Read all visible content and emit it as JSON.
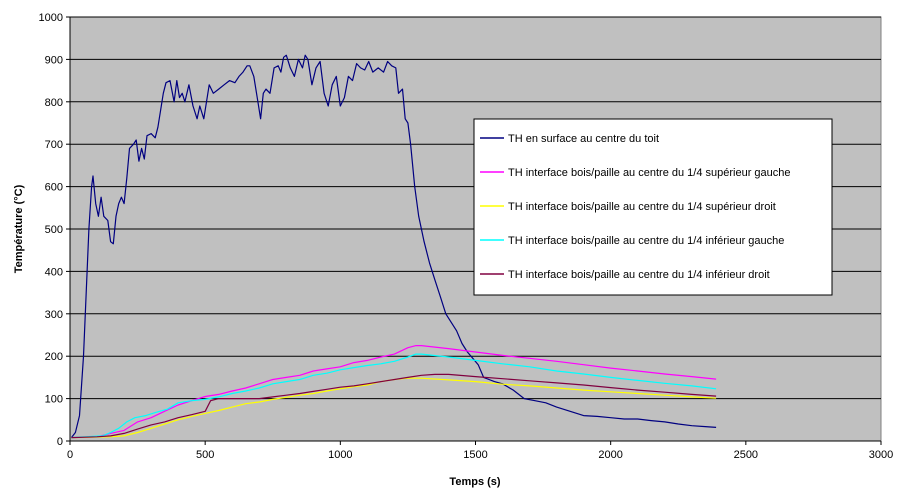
{
  "chart_data": {
    "type": "line",
    "title": "",
    "xlabel": "Temps (s)",
    "ylabel": "Température (°C)",
    "xlim": [
      0,
      3000
    ],
    "ylim": [
      0,
      1000
    ],
    "x_ticks": [
      0,
      500,
      1000,
      1500,
      2000,
      2500,
      3000
    ],
    "y_ticks": [
      0,
      100,
      200,
      300,
      400,
      500,
      600,
      700,
      800,
      900,
      1000
    ],
    "grid": "horizontal",
    "legend_position": "right",
    "plot_background": "#c0c0c0",
    "series": [
      {
        "name": "TH en surface au centre du toit",
        "color": "#000080",
        "points": [
          [
            5,
            8
          ],
          [
            20,
            20
          ],
          [
            35,
            60
          ],
          [
            50,
            200
          ],
          [
            60,
            350
          ],
          [
            70,
            500
          ],
          [
            80,
            600
          ],
          [
            85,
            625
          ],
          [
            95,
            560
          ],
          [
            105,
            530
          ],
          [
            115,
            575
          ],
          [
            125,
            530
          ],
          [
            140,
            520
          ],
          [
            150,
            470
          ],
          [
            160,
            465
          ],
          [
            170,
            530
          ],
          [
            180,
            560
          ],
          [
            190,
            575
          ],
          [
            200,
            560
          ],
          [
            210,
            620
          ],
          [
            220,
            690
          ],
          [
            235,
            700
          ],
          [
            245,
            710
          ],
          [
            255,
            660
          ],
          [
            265,
            690
          ],
          [
            275,
            665
          ],
          [
            285,
            720
          ],
          [
            300,
            725
          ],
          [
            315,
            715
          ],
          [
            325,
            740
          ],
          [
            335,
            780
          ],
          [
            345,
            820
          ],
          [
            355,
            845
          ],
          [
            370,
            850
          ],
          [
            385,
            800
          ],
          [
            395,
            850
          ],
          [
            405,
            810
          ],
          [
            415,
            820
          ],
          [
            425,
            800
          ],
          [
            440,
            840
          ],
          [
            455,
            790
          ],
          [
            470,
            760
          ],
          [
            480,
            790
          ],
          [
            495,
            760
          ],
          [
            505,
            800
          ],
          [
            515,
            840
          ],
          [
            530,
            820
          ],
          [
            550,
            830
          ],
          [
            570,
            840
          ],
          [
            590,
            850
          ],
          [
            610,
            845
          ],
          [
            625,
            860
          ],
          [
            640,
            870
          ],
          [
            655,
            885
          ],
          [
            665,
            885
          ],
          [
            680,
            860
          ],
          [
            695,
            800
          ],
          [
            705,
            760
          ],
          [
            715,
            820
          ],
          [
            725,
            830
          ],
          [
            740,
            820
          ],
          [
            755,
            880
          ],
          [
            770,
            885
          ],
          [
            780,
            870
          ],
          [
            790,
            905
          ],
          [
            800,
            910
          ],
          [
            815,
            880
          ],
          [
            830,
            860
          ],
          [
            845,
            900
          ],
          [
            860,
            880
          ],
          [
            870,
            910
          ],
          [
            880,
            900
          ],
          [
            895,
            840
          ],
          [
            910,
            880
          ],
          [
            925,
            895
          ],
          [
            940,
            820
          ],
          [
            955,
            790
          ],
          [
            970,
            840
          ],
          [
            985,
            860
          ],
          [
            1000,
            790
          ],
          [
            1015,
            810
          ],
          [
            1030,
            860
          ],
          [
            1045,
            850
          ],
          [
            1060,
            890
          ],
          [
            1075,
            880
          ],
          [
            1090,
            875
          ],
          [
            1105,
            895
          ],
          [
            1120,
            870
          ],
          [
            1140,
            880
          ],
          [
            1160,
            870
          ],
          [
            1175,
            895
          ],
          [
            1190,
            885
          ],
          [
            1205,
            880
          ],
          [
            1215,
            820
          ],
          [
            1230,
            830
          ],
          [
            1240,
            760
          ],
          [
            1250,
            750
          ],
          [
            1260,
            700
          ],
          [
            1275,
            600
          ],
          [
            1290,
            530
          ],
          [
            1310,
            470
          ],
          [
            1330,
            420
          ],
          [
            1350,
            380
          ],
          [
            1370,
            340
          ],
          [
            1390,
            300
          ],
          [
            1410,
            280
          ],
          [
            1430,
            260
          ],
          [
            1450,
            230
          ],
          [
            1470,
            210
          ],
          [
            1490,
            195
          ],
          [
            1510,
            180
          ],
          [
            1530,
            150
          ],
          [
            1550,
            145
          ],
          [
            1570,
            140
          ],
          [
            1600,
            135
          ],
          [
            1640,
            120
          ],
          [
            1680,
            100
          ],
          [
            1720,
            95
          ],
          [
            1760,
            90
          ],
          [
            1800,
            80
          ],
          [
            1850,
            70
          ],
          [
            1900,
            60
          ],
          [
            1950,
            58
          ],
          [
            2000,
            55
          ],
          [
            2050,
            52
          ],
          [
            2100,
            52
          ],
          [
            2150,
            48
          ],
          [
            2200,
            45
          ],
          [
            2250,
            40
          ],
          [
            2300,
            36
          ],
          [
            2350,
            34
          ],
          [
            2390,
            32
          ]
        ]
      },
      {
        "name": "TH interface bois/paille au centre du 1/4 supérieur gauche",
        "color": "#ff00ff",
        "points": [
          [
            5,
            8
          ],
          [
            100,
            10
          ],
          [
            150,
            18
          ],
          [
            200,
            25
          ],
          [
            250,
            45
          ],
          [
            300,
            55
          ],
          [
            350,
            70
          ],
          [
            400,
            85
          ],
          [
            450,
            95
          ],
          [
            500,
            105
          ],
          [
            550,
            110
          ],
          [
            600,
            118
          ],
          [
            650,
            125
          ],
          [
            700,
            135
          ],
          [
            750,
            145
          ],
          [
            800,
            150
          ],
          [
            850,
            155
          ],
          [
            900,
            165
          ],
          [
            950,
            170
          ],
          [
            1000,
            175
          ],
          [
            1050,
            185
          ],
          [
            1100,
            190
          ],
          [
            1150,
            198
          ],
          [
            1200,
            205
          ],
          [
            1250,
            220
          ],
          [
            1280,
            225
          ],
          [
            1300,
            225
          ],
          [
            1400,
            218
          ],
          [
            1500,
            210
          ],
          [
            1600,
            202
          ],
          [
            1700,
            195
          ],
          [
            1800,
            188
          ],
          [
            1900,
            180
          ],
          [
            2000,
            172
          ],
          [
            2100,
            165
          ],
          [
            2200,
            158
          ],
          [
            2300,
            152
          ],
          [
            2390,
            146
          ]
        ]
      },
      {
        "name": "TH interface bois/paille au centre du 1/4 supérieur droit",
        "color": "#ffff00",
        "points": [
          [
            5,
            8
          ],
          [
            150,
            10
          ],
          [
            200,
            12
          ],
          [
            250,
            20
          ],
          [
            300,
            30
          ],
          [
            350,
            40
          ],
          [
            400,
            50
          ],
          [
            450,
            58
          ],
          [
            500,
            65
          ],
          [
            550,
            72
          ],
          [
            600,
            80
          ],
          [
            650,
            88
          ],
          [
            700,
            92
          ],
          [
            750,
            98
          ],
          [
            800,
            103
          ],
          [
            850,
            108
          ],
          [
            900,
            112
          ],
          [
            950,
            118
          ],
          [
            1000,
            123
          ],
          [
            1050,
            128
          ],
          [
            1100,
            132
          ],
          [
            1150,
            140
          ],
          [
            1200,
            145
          ],
          [
            1250,
            148
          ],
          [
            1300,
            148
          ],
          [
            1400,
            144
          ],
          [
            1500,
            140
          ],
          [
            1600,
            134
          ],
          [
            1700,
            130
          ],
          [
            1800,
            125
          ],
          [
            1900,
            120
          ],
          [
            2000,
            116
          ],
          [
            2100,
            112
          ],
          [
            2200,
            108
          ],
          [
            2300,
            104
          ],
          [
            2390,
            101
          ]
        ]
      },
      {
        "name": "TH interface bois/paille au centre du 1/4 inférieur gauche",
        "color": "#00ffff",
        "points": [
          [
            5,
            8
          ],
          [
            120,
            12
          ],
          [
            150,
            20
          ],
          [
            180,
            30
          ],
          [
            210,
            45
          ],
          [
            240,
            55
          ],
          [
            280,
            60
          ],
          [
            320,
            68
          ],
          [
            360,
            75
          ],
          [
            400,
            90
          ],
          [
            450,
            95
          ],
          [
            500,
            98
          ],
          [
            550,
            104
          ],
          [
            600,
            112
          ],
          [
            650,
            118
          ],
          [
            700,
            125
          ],
          [
            750,
            135
          ],
          [
            800,
            140
          ],
          [
            850,
            145
          ],
          [
            900,
            155
          ],
          [
            950,
            160
          ],
          [
            1000,
            168
          ],
          [
            1050,
            173
          ],
          [
            1100,
            178
          ],
          [
            1150,
            182
          ],
          [
            1200,
            188
          ],
          [
            1250,
            198
          ],
          [
            1280,
            205
          ],
          [
            1300,
            205
          ],
          [
            1400,
            198
          ],
          [
            1500,
            190
          ],
          [
            1600,
            182
          ],
          [
            1700,
            175
          ],
          [
            1800,
            165
          ],
          [
            1900,
            158
          ],
          [
            2000,
            150
          ],
          [
            2100,
            143
          ],
          [
            2200,
            136
          ],
          [
            2300,
            130
          ],
          [
            2390,
            123
          ]
        ]
      },
      {
        "name": "TH interface bois/paille au centre du 1/4 inférieur droit",
        "color": "#800040",
        "points": [
          [
            5,
            8
          ],
          [
            100,
            10
          ],
          [
            150,
            12
          ],
          [
            200,
            18
          ],
          [
            250,
            28
          ],
          [
            300,
            38
          ],
          [
            350,
            45
          ],
          [
            400,
            55
          ],
          [
            450,
            62
          ],
          [
            500,
            70
          ],
          [
            520,
            95
          ],
          [
            550,
            100
          ],
          [
            600,
            100
          ],
          [
            650,
            100
          ],
          [
            700,
            100
          ],
          [
            750,
            104
          ],
          [
            800,
            108
          ],
          [
            850,
            112
          ],
          [
            900,
            117
          ],
          [
            950,
            122
          ],
          [
            1000,
            127
          ],
          [
            1050,
            130
          ],
          [
            1100,
            135
          ],
          [
            1150,
            140
          ],
          [
            1200,
            145
          ],
          [
            1250,
            150
          ],
          [
            1300,
            155
          ],
          [
            1350,
            157
          ],
          [
            1400,
            157
          ],
          [
            1500,
            152
          ],
          [
            1600,
            147
          ],
          [
            1700,
            142
          ],
          [
            1800,
            137
          ],
          [
            1900,
            132
          ],
          [
            2000,
            126
          ],
          [
            2100,
            120
          ],
          [
            2200,
            115
          ],
          [
            2300,
            110
          ],
          [
            2390,
            106
          ]
        ]
      }
    ]
  }
}
